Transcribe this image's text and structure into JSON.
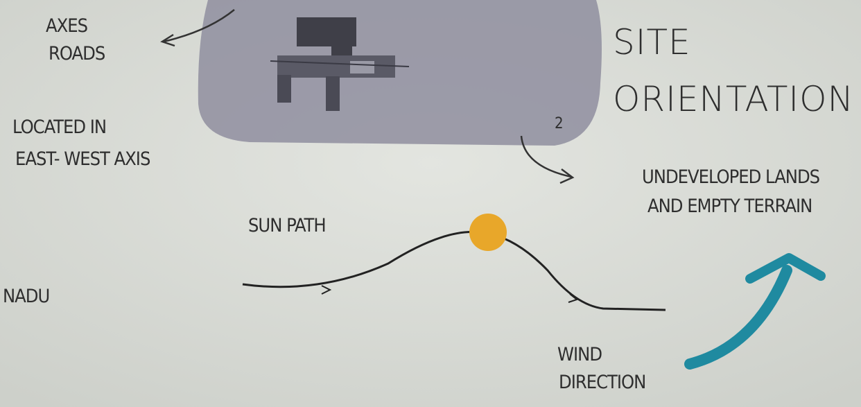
{
  "heading": {
    "lines": [
      "SITE",
      "ORIENTATION"
    ]
  },
  "notes": [
    {
      "lines": [
        "AXES",
        "ROADS"
      ]
    },
    {
      "lines": [
        "LOCATED IN",
        "EAST- WEST AXIS"
      ]
    },
    {
      "lines": [
        "UNDEVELOPED LANDS",
        "AND EMPTY TERRAIN"
      ]
    },
    {
      "lines": [
        "SUN PATH"
      ]
    },
    {
      "lines": [
        "NADU"
      ]
    },
    {
      "lines": [
        "WIND",
        "DIRECTION"
      ]
    }
  ],
  "map": {
    "label": "2"
  }
}
